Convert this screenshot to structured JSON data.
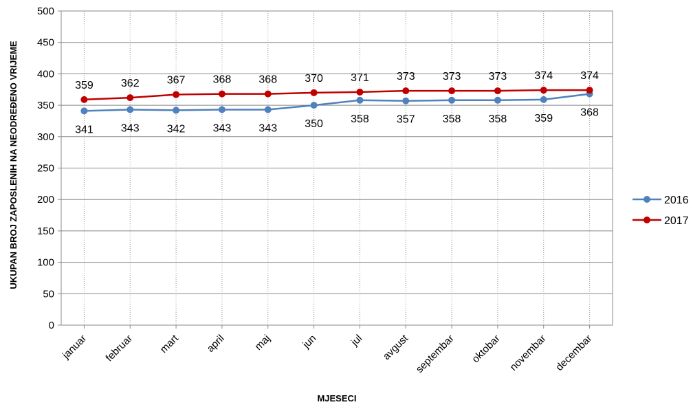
{
  "chart_data": {
    "type": "line",
    "title": "",
    "xlabel": "MJESECI",
    "ylabel": "UKUPAN BROJ ZAPOSLENIH NA NEODREĐENO VRIJEME",
    "categories": [
      "januar",
      "februar",
      "mart",
      "april",
      "maj",
      "jun",
      "jul",
      "avgust",
      "septembar",
      "oktobar",
      "novembar",
      "decembar"
    ],
    "ylim": [
      0,
      500
    ],
    "yticks": [
      "0",
      "50",
      "100",
      "150",
      "200",
      "250",
      "300",
      "350",
      "400",
      "450",
      "500"
    ],
    "grid": true,
    "legend_position": "right",
    "series": [
      {
        "name": "2016",
        "color": "#4f81bd",
        "values": [
          341,
          343,
          342,
          343,
          343,
          350,
          358,
          357,
          358,
          358,
          359,
          368
        ]
      },
      {
        "name": "2017",
        "color": "#c00000",
        "values": [
          359,
          362,
          367,
          368,
          368,
          370,
          371,
          373,
          373,
          373,
          374,
          374
        ]
      }
    ]
  }
}
